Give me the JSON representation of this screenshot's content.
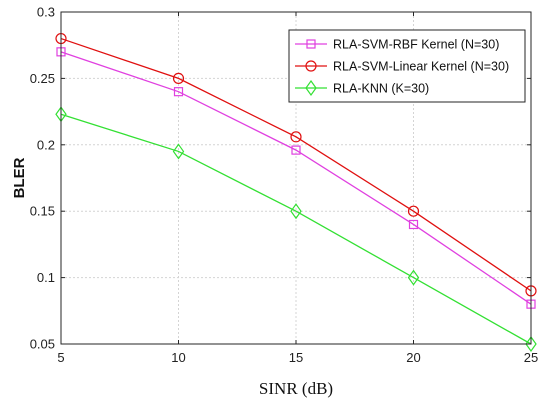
{
  "chart_data": {
    "type": "line",
    "title": "",
    "xlabel": "SINR (dB)",
    "ylabel": "BLER",
    "x": [
      5,
      10,
      15,
      20,
      25
    ],
    "xlim": [
      5,
      25
    ],
    "ylim": [
      0.05,
      0.3
    ],
    "x_ticks": [
      "5",
      "10",
      "15",
      "20",
      "25"
    ],
    "y_ticks": [
      "0.05",
      "0.1",
      "0.15",
      "0.2",
      "0.25",
      "0.3"
    ],
    "grid": true,
    "legend_position": "top-right",
    "series": [
      {
        "name": "RLA-SVM-RBF Kernel (N=30)",
        "values": [
          0.27,
          0.24,
          0.196,
          0.14,
          0.08
        ],
        "color": "#e040e0",
        "marker": "square"
      },
      {
        "name": "RLA-SVM-Linear Kernel (N=30)",
        "values": [
          0.28,
          0.25,
          0.206,
          0.15,
          0.09
        ],
        "color": "#e01010",
        "marker": "circle"
      },
      {
        "name": "RLA-KNN (K=30)",
        "values": [
          0.223,
          0.195,
          0.15,
          0.1,
          0.05
        ],
        "color": "#33e033",
        "marker": "diamond"
      }
    ]
  }
}
